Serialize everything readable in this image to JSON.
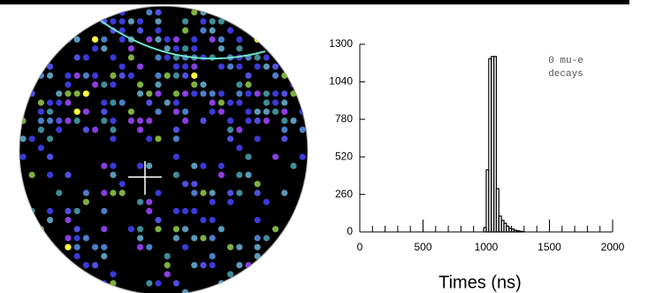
{
  "chart_data": {
    "type": "histogram",
    "xlabel": "Times (ns)",
    "annotations": [
      "0 mu-e",
      "decays"
    ],
    "bins": [
      980,
      1000,
      1020,
      1040,
      1060,
      1080,
      1100,
      1120,
      1140,
      1160,
      1180,
      1200,
      1220,
      1240,
      1260,
      1280,
      1300
    ],
    "counts": [
      30,
      430,
      1200,
      1215,
      1215,
      300,
      110,
      80,
      60,
      40,
      25,
      20,
      12,
      8,
      5,
      3
    ],
    "color": "#000000",
    "xlim": [
      0,
      2000
    ],
    "ylim": [
      0,
      1300
    ],
    "xticks": [
      0,
      500,
      1000,
      1500,
      2000
    ],
    "xminorticks": [
      100,
      200,
      300,
      400,
      600,
      700,
      800,
      900,
      1100,
      1200,
      1300,
      1400,
      1600,
      1700,
      1800,
      1900
    ],
    "yticks": [
      0,
      260,
      520,
      780,
      1040,
      1300
    ]
  }
}
